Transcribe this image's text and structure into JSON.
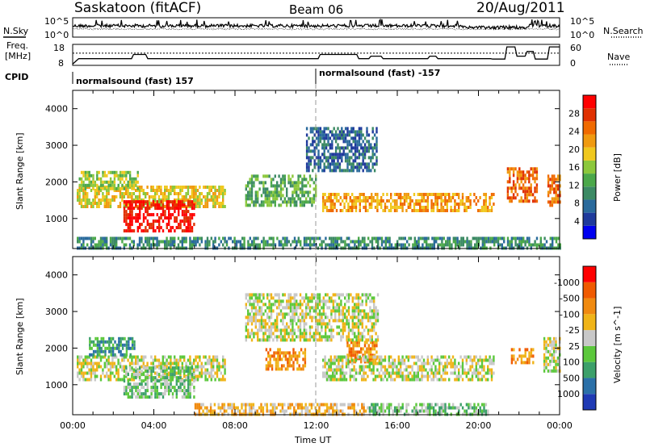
{
  "header": {
    "site": "Saskatoon (fitACF)",
    "beam": "Beam 06",
    "date": "20/Aug/2011"
  },
  "top_panels": {
    "nsky_label": "N.Sky",
    "nsearch_label": "N.Search",
    "freq_label_1": "Freq.",
    "freq_label_2": "[MHz]",
    "nave_label": "Nave",
    "cpid_label": "CPID",
    "nsky_ticks": [
      "10^5",
      "10^0"
    ],
    "nsky_right_ticks": [
      "10^5",
      "10^0"
    ],
    "freq_ticks": [
      "18",
      "8"
    ],
    "nave_ticks": [
      "60",
      "0"
    ],
    "cpid_segments": [
      {
        "label": "normalsound (fast) 157",
        "start_hour": 0
      },
      {
        "label": "normalsound (fast) -157",
        "start_hour": 12
      }
    ],
    "freq_trace": [
      [
        0,
        8.6
      ],
      [
        0.3,
        11.2
      ],
      [
        2.9,
        11.2
      ],
      [
        3.0,
        13.2
      ],
      [
        3.6,
        13.2
      ],
      [
        3.7,
        11.2
      ],
      [
        12.1,
        11.2
      ],
      [
        12.2,
        13.2
      ],
      [
        14.0,
        13.2
      ],
      [
        14.1,
        11.2
      ],
      [
        14.6,
        11.2
      ],
      [
        14.7,
        12.4
      ],
      [
        15.2,
        12.4
      ],
      [
        15.3,
        11.2
      ],
      [
        17.5,
        11.2
      ],
      [
        17.6,
        12.4
      ],
      [
        17.9,
        12.4
      ],
      [
        18.0,
        11.2
      ],
      [
        20.6,
        11.2
      ],
      [
        20.7,
        11.0
      ],
      [
        21.3,
        11.0
      ],
      [
        21.4,
        16.8
      ],
      [
        21.8,
        16.8
      ],
      [
        21.9,
        12.4
      ],
      [
        22.3,
        12.4
      ],
      [
        22.4,
        14.6
      ],
      [
        22.7,
        14.6
      ],
      [
        22.8,
        11.0
      ],
      [
        23.4,
        11.0
      ],
      [
        23.5,
        16.8
      ],
      [
        24,
        16.8
      ]
    ],
    "nave_trace": [
      [
        0,
        35
      ],
      [
        24,
        35
      ]
    ]
  },
  "chart_data": [
    {
      "type": "heatmap",
      "title": "",
      "xlabel": "",
      "ylabel": "Slant Range [km]",
      "xlim": [
        0,
        24
      ],
      "ylim": [
        180,
        4500
      ],
      "xticks": [
        0,
        4,
        8,
        12,
        16,
        20,
        24
      ],
      "yticks": [
        1000,
        2000,
        3000,
        4000
      ],
      "colorbar": {
        "label": "Power [dB]",
        "ticks": [
          "4",
          "8",
          "12",
          "16",
          "20",
          "24",
          "28"
        ],
        "colors": [
          "#0000f0",
          "#1f3a9c",
          "#2a6a9c",
          "#3c8a64",
          "#4ba84a",
          "#8cc83c",
          "#f0c81e",
          "#f09a10",
          "#f06a00",
          "#e03000",
          "#ff0000"
        ]
      },
      "regions": [
        {
          "name": "dayside-band",
          "x": [
            0.2,
            7.5
          ],
          "y": [
            1300,
            1900
          ],
          "level": 6
        },
        {
          "name": "strong-echo",
          "x": [
            2.5,
            6.0
          ],
          "y": [
            700,
            1500
          ],
          "level": 10
        },
        {
          "name": "upper-band",
          "x": [
            0.3,
            3.2
          ],
          "y": [
            1800,
            2300
          ],
          "level": 5
        },
        {
          "name": "mid-day-clusters",
          "x": [
            8.5,
            12.0
          ],
          "y": [
            1400,
            2200
          ],
          "level": 4
        },
        {
          "name": "high-range-scatter",
          "x": [
            11.5,
            15.0
          ],
          "y": [
            2300,
            3500
          ],
          "level": 2
        },
        {
          "name": "afternoon-band",
          "x": [
            12.3,
            20.8
          ],
          "y": [
            1200,
            1700
          ],
          "level": 7
        },
        {
          "name": "near-range",
          "x": [
            0.2,
            24
          ],
          "y": [
            200,
            500
          ],
          "level": 3
        },
        {
          "name": "late-cluster",
          "x": [
            21.4,
            22.9
          ],
          "y": [
            1500,
            2400
          ],
          "level": 8
        },
        {
          "name": "end-cluster",
          "x": [
            23.4,
            24
          ],
          "y": [
            1400,
            2200
          ],
          "level": 8
        }
      ]
    },
    {
      "type": "heatmap",
      "title": "",
      "xlabel": "Time UT",
      "ylabel": "Slant Range [km]",
      "xlim": [
        0,
        24
      ],
      "ylim": [
        180,
        4500
      ],
      "xticks": [
        0,
        4,
        8,
        12,
        16,
        20,
        24
      ],
      "xtick_labels": [
        "00:00",
        "04:00",
        "08:00",
        "12:00",
        "16:00",
        "20:00",
        "00:00"
      ],
      "yticks": [
        1000,
        2000,
        3000,
        4000
      ],
      "colorbar": {
        "label": "Velocity [m s^-1]",
        "ticks": [
          "1000",
          "500",
          "100",
          "25",
          "-25",
          "-100",
          "-500",
          "-1000"
        ],
        "colors": [
          "#1f3ab4",
          "#2b70a8",
          "#3ca06a",
          "#5cc83c",
          "#c8c8c8",
          "#f0b418",
          "#f08a10",
          "#f05a00",
          "#ff0000"
        ]
      },
      "regions": [
        {
          "name": "ground-scatter-band",
          "x": [
            0.2,
            7.5
          ],
          "y": [
            1100,
            1800
          ],
          "level": 4
        },
        {
          "name": "green-echo",
          "x": [
            2.5,
            6.0
          ],
          "y": [
            700,
            1500
          ],
          "level": 3
        },
        {
          "name": "blue-green-upper",
          "x": [
            0.8,
            3.0
          ],
          "y": [
            1800,
            2300
          ],
          "level": 2
        },
        {
          "name": "orange-patches",
          "x": [
            9.5,
            11.5
          ],
          "y": [
            1400,
            2000
          ],
          "level": 6
        },
        {
          "name": "orange-patch-2",
          "x": [
            13.5,
            15.0
          ],
          "y": [
            1600,
            2200
          ],
          "level": 6
        },
        {
          "name": "grey-afternoon",
          "x": [
            12.3,
            20.8
          ],
          "y": [
            1100,
            1800
          ],
          "level": 4
        },
        {
          "name": "near-range-yellow",
          "x": [
            6.0,
            14.5
          ],
          "y": [
            200,
            500
          ],
          "level": 5
        },
        {
          "name": "near-range-green",
          "x": [
            14.5,
            20.5
          ],
          "y": [
            200,
            500
          ],
          "level": 3
        },
        {
          "name": "grey-upper",
          "x": [
            8.5,
            15.0
          ],
          "y": [
            2200,
            3500
          ],
          "level": 4
        },
        {
          "name": "late-orange",
          "x": [
            21.6,
            22.7
          ],
          "y": [
            1600,
            2000
          ],
          "level": 6
        },
        {
          "name": "end-grey",
          "x": [
            23.2,
            24
          ],
          "y": [
            1400,
            2300
          ],
          "level": 4
        }
      ]
    }
  ]
}
